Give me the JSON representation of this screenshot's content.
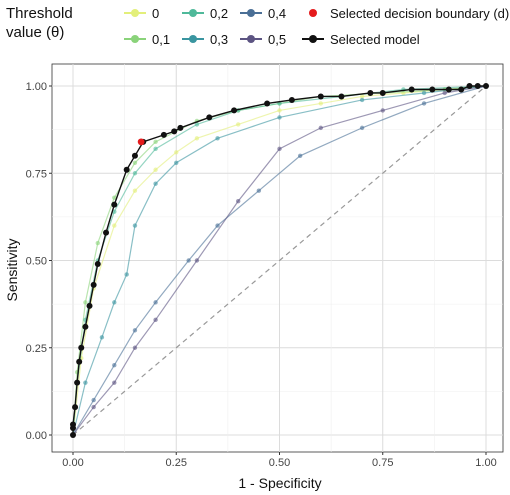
{
  "legend": {
    "title": "Threshold\nvalue (θ)",
    "items": [
      {
        "label": "0",
        "color": "#e3ef7a"
      },
      {
        "label": "0,1",
        "color": "#8ad37a"
      },
      {
        "label": "0,2",
        "color": "#4fb99a"
      },
      {
        "label": "0,3",
        "color": "#3a95a0"
      },
      {
        "label": "0,4",
        "color": "#4a6f96"
      },
      {
        "label": "0,5",
        "color": "#5c5482"
      }
    ],
    "boundary_label": "Selected decision boundary (d)",
    "boundary_color": "#e41a1c",
    "model_label": "Selected model",
    "model_color": "#111111"
  },
  "chart_data": {
    "type": "line",
    "xlabel": "1 - Specificity",
    "ylabel": "Sensitivity",
    "xlim": [
      0,
      1
    ],
    "ylim": [
      0,
      1
    ],
    "xticks": [
      "0.00",
      "0.25",
      "0.50",
      "0.75",
      "1.00"
    ],
    "yticks": [
      "0.00",
      "0.25",
      "0.50",
      "0.75",
      "1.00"
    ],
    "grid": true,
    "legend_position": "top",
    "diagonal_reference": true,
    "selected_model": {
      "x": [
        0,
        0,
        0,
        0.005,
        0.01,
        0.015,
        0.02,
        0.03,
        0.04,
        0.05,
        0.06,
        0.08,
        0.1,
        0.13,
        0.15,
        0.17,
        0.22,
        0.245,
        0.26,
        0.33,
        0.39,
        0.47,
        0.53,
        0.6,
        0.65,
        0.72,
        0.75,
        0.82,
        0.87,
        0.91,
        0.94,
        0.96,
        0.98,
        1.0
      ],
      "y": [
        0,
        0.02,
        0.03,
        0.08,
        0.15,
        0.21,
        0.25,
        0.31,
        0.37,
        0.43,
        0.49,
        0.58,
        0.66,
        0.76,
        0.8,
        0.84,
        0.86,
        0.87,
        0.88,
        0.91,
        0.93,
        0.95,
        0.96,
        0.97,
        0.97,
        0.98,
        0.98,
        0.99,
        0.99,
        0.99,
        0.99,
        1.0,
        1.0,
        1.0
      ]
    },
    "selected_boundary": {
      "x": 0.165,
      "y": 0.84
    },
    "series": [
      {
        "name": "0",
        "x": [
          0,
          0.02,
          0.05,
          0.1,
          0.15,
          0.2,
          0.25,
          0.3,
          0.4,
          0.5,
          0.6,
          0.7,
          0.8,
          0.9,
          1.0
        ],
        "y": [
          0,
          0.22,
          0.42,
          0.6,
          0.7,
          0.76,
          0.81,
          0.85,
          0.89,
          0.93,
          0.95,
          0.97,
          0.98,
          0.99,
          1.0
        ]
      },
      {
        "name": "0,1",
        "x": [
          0,
          0.01,
          0.03,
          0.06,
          0.1,
          0.15,
          0.2,
          0.3,
          0.4,
          0.5,
          0.6,
          0.75,
          0.9,
          1.0
        ],
        "y": [
          0,
          0.18,
          0.38,
          0.55,
          0.68,
          0.78,
          0.84,
          0.9,
          0.93,
          0.95,
          0.97,
          0.98,
          0.99,
          1.0
        ]
      },
      {
        "name": "0,2",
        "x": [
          0,
          0.01,
          0.03,
          0.06,
          0.1,
          0.15,
          0.2,
          0.3,
          0.4,
          0.5,
          0.65,
          0.8,
          1.0
        ],
        "y": [
          0,
          0.15,
          0.33,
          0.5,
          0.64,
          0.75,
          0.82,
          0.89,
          0.93,
          0.95,
          0.97,
          0.99,
          1.0
        ]
      },
      {
        "name": "0,3",
        "x": [
          0,
          0.03,
          0.07,
          0.1,
          0.13,
          0.15,
          0.2,
          0.25,
          0.35,
          0.5,
          0.7,
          0.85,
          1.0
        ],
        "y": [
          0,
          0.15,
          0.28,
          0.38,
          0.46,
          0.6,
          0.72,
          0.78,
          0.85,
          0.91,
          0.96,
          0.98,
          1.0
        ]
      },
      {
        "name": "0,4",
        "x": [
          0,
          0.05,
          0.1,
          0.15,
          0.2,
          0.28,
          0.35,
          0.45,
          0.55,
          0.7,
          0.85,
          1.0
        ],
        "y": [
          0,
          0.1,
          0.2,
          0.3,
          0.38,
          0.5,
          0.6,
          0.7,
          0.8,
          0.88,
          0.95,
          1.0
        ]
      },
      {
        "name": "0,5",
        "x": [
          0,
          0.05,
          0.1,
          0.15,
          0.2,
          0.3,
          0.4,
          0.5,
          0.6,
          0.75,
          0.9,
          1.0
        ],
        "y": [
          0,
          0.08,
          0.15,
          0.25,
          0.33,
          0.5,
          0.67,
          0.82,
          0.88,
          0.93,
          0.98,
          1.0
        ]
      }
    ]
  }
}
